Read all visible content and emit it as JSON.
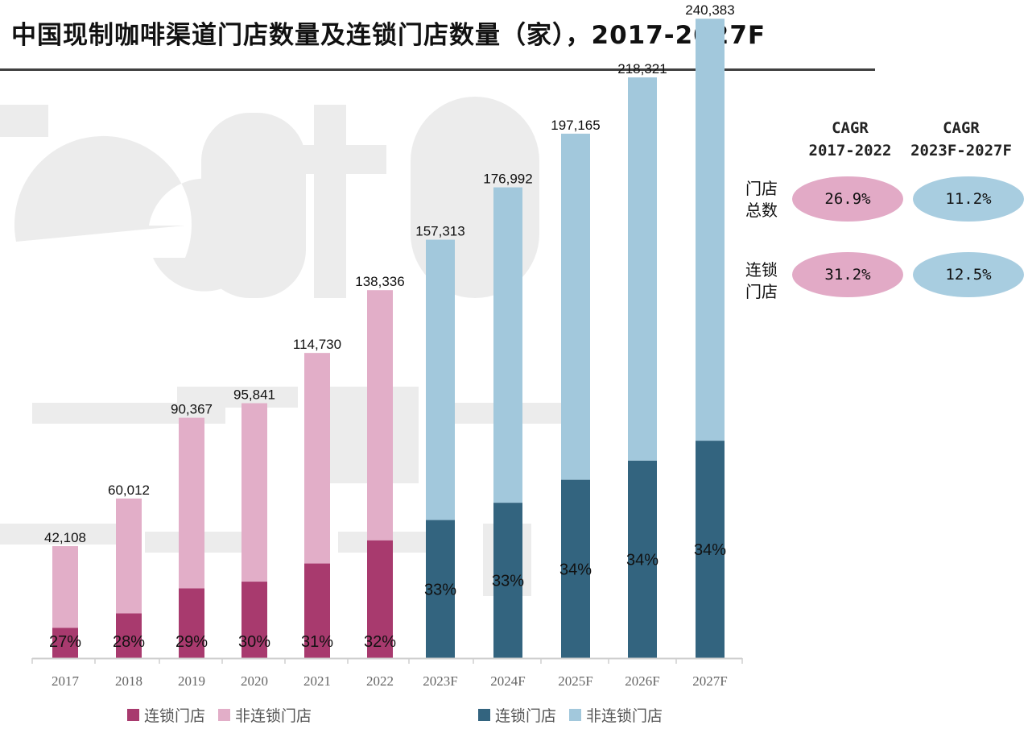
{
  "title": "中国现制咖啡渠道门店数量及连锁门店数量（家），2017-2027F",
  "colors": {
    "hist_chain": "#a83a6e",
    "hist_nonchain": "#e2aec8",
    "fcst_chain": "#33647f",
    "fcst_nonchain": "#a2c8dc",
    "pill_pink": "#e2aac6",
    "pill_blue": "#a8cde0"
  },
  "chart_data": {
    "type": "bar",
    "stacked": true,
    "categories": [
      "2017",
      "2018",
      "2019",
      "2020",
      "2021",
      "2022",
      "2023F",
      "2024F",
      "2025F",
      "2026F",
      "2027F"
    ],
    "totals": [
      42108,
      60012,
      90367,
      95841,
      114730,
      138336,
      157313,
      176992,
      197165,
      218321,
      240383
    ],
    "total_labels": [
      "42,108",
      "60,012",
      "90,367",
      "95,841",
      "114,730",
      "138,336",
      "157,313",
      "176,992",
      "197,165",
      "218,321",
      "240,383"
    ],
    "chain_share": [
      0.27,
      0.28,
      0.29,
      0.3,
      0.31,
      0.32,
      0.33,
      0.33,
      0.34,
      0.34,
      0.34
    ],
    "chain_share_labels": [
      "27%",
      "28%",
      "29%",
      "30%",
      "31%",
      "32%",
      "33%",
      "33%",
      "34%",
      "34%",
      "34%"
    ],
    "series": [
      {
        "name": "连锁门店",
        "kind": "chain"
      },
      {
        "name": "非连锁门店",
        "kind": "nonchain"
      }
    ],
    "forecast_start_index": 6,
    "ylim": [
      0,
      245000
    ],
    "grid": false
  },
  "legend": {
    "historical": [
      "连锁门店",
      "非连锁门店"
    ],
    "forecast": [
      "连锁门店",
      "非连锁门店"
    ]
  },
  "cagr": {
    "headers": [
      {
        "line1": "CAGR",
        "line2": "2017-2022"
      },
      {
        "line1": "CAGR",
        "line2": "2023F-2027F"
      }
    ],
    "rows": [
      {
        "label_line1": "门店",
        "label_line2": "总数",
        "values": [
          "26.9%",
          "11.2%"
        ]
      },
      {
        "label_line1": "连锁",
        "label_line2": "门店",
        "values": [
          "31.2%",
          "12.5%"
        ]
      }
    ]
  }
}
